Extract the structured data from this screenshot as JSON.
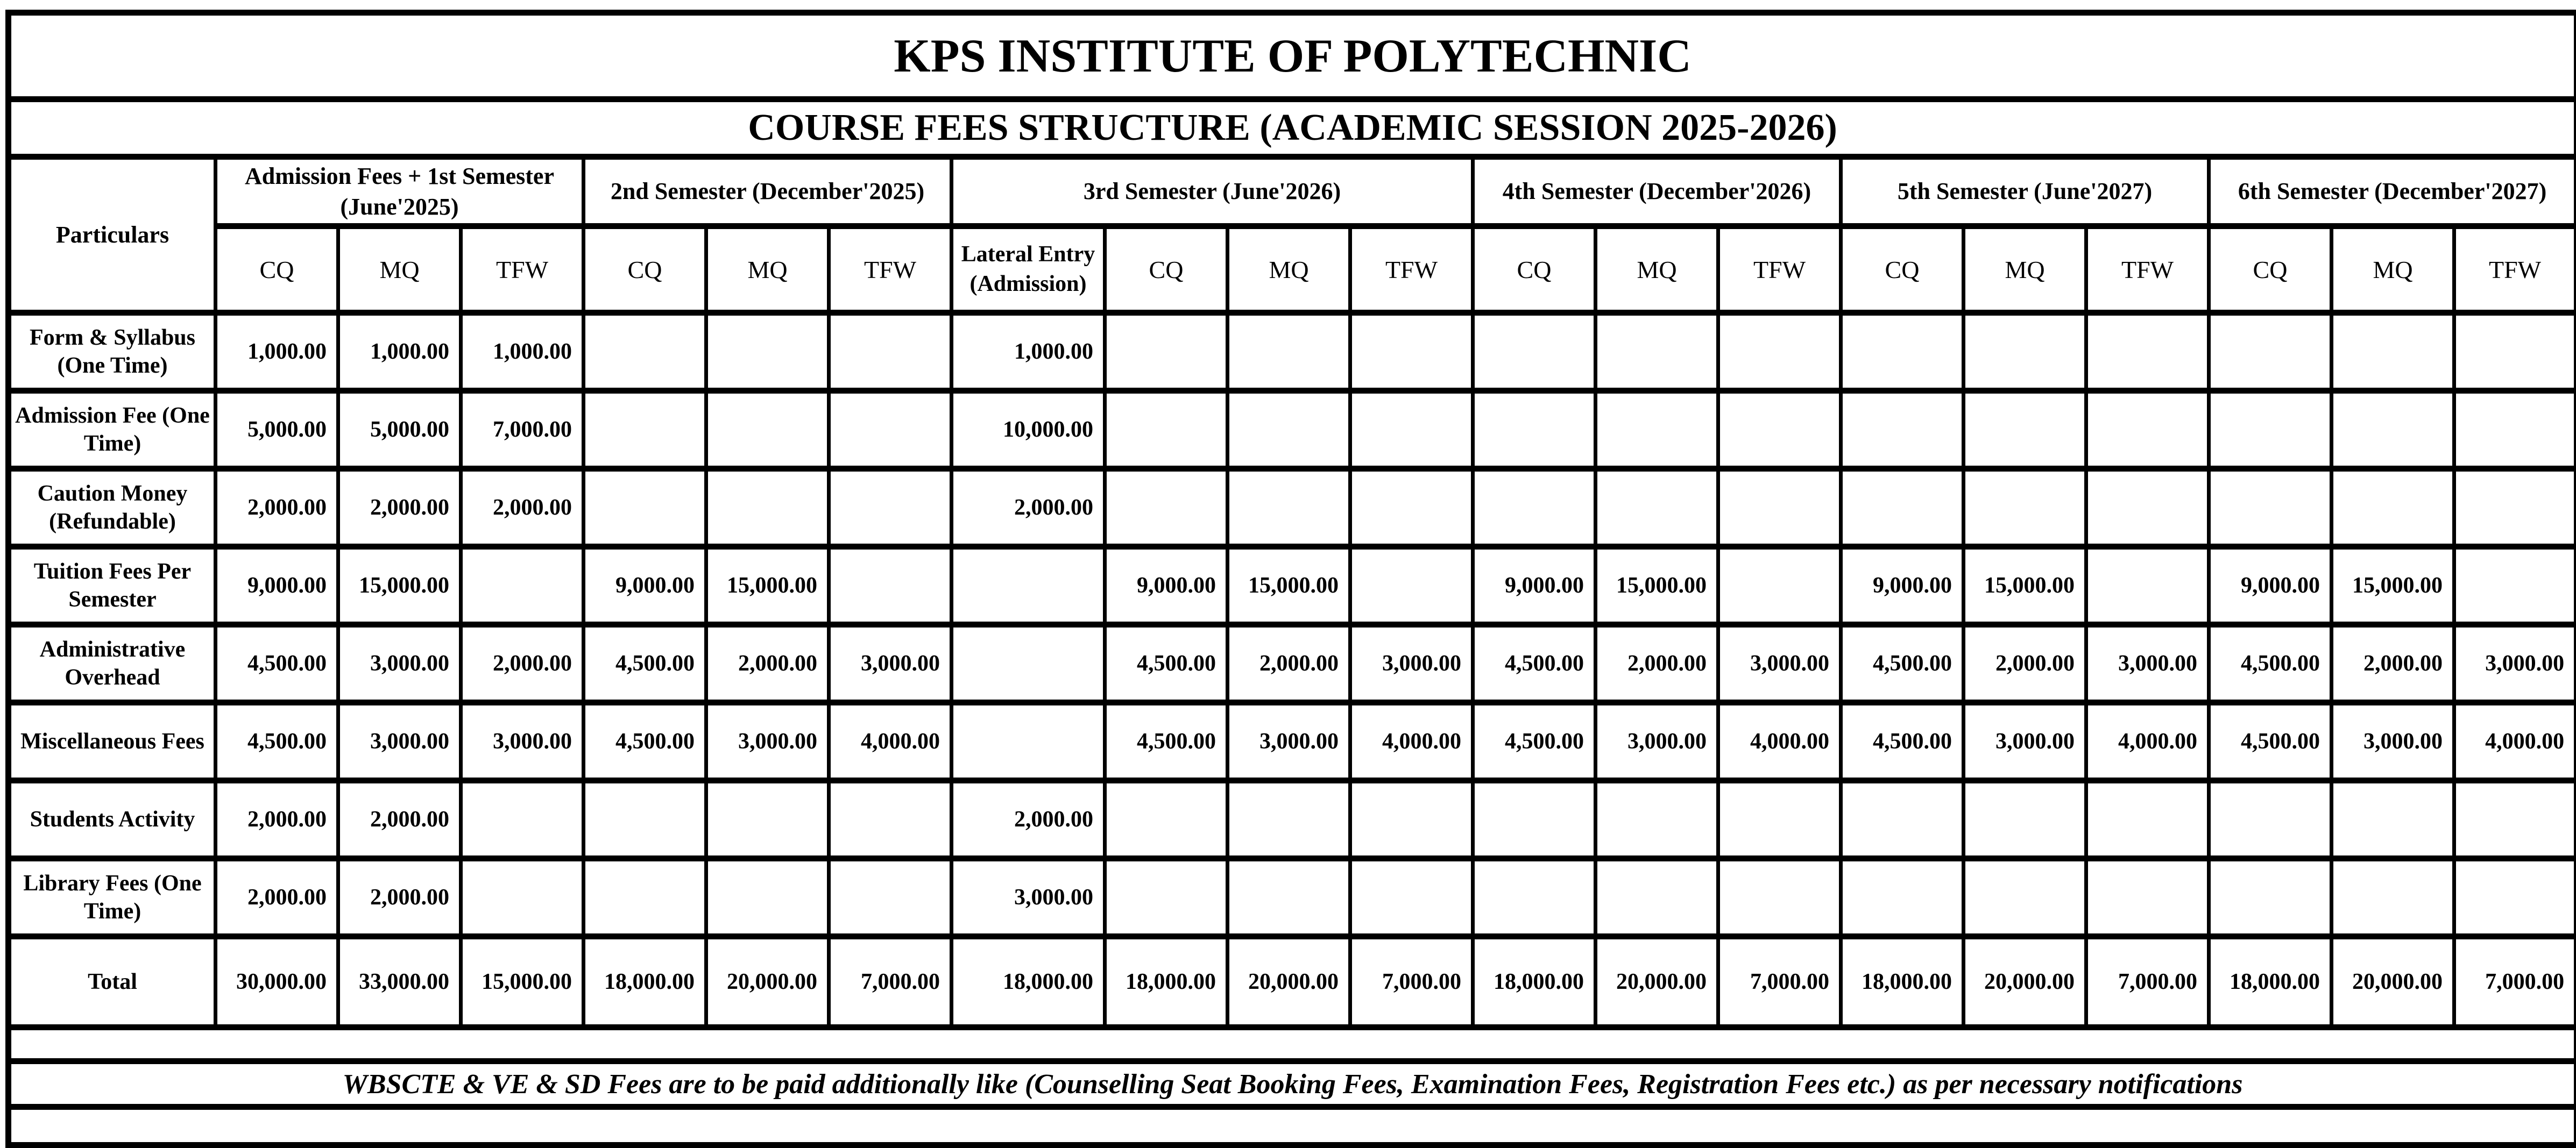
{
  "title": "KPS INSTITUTE OF POLYTECHNIC",
  "subtitle": "COURSE FEES STRUCTURE (ACADEMIC SESSION 2025-2026)",
  "colors": {
    "background": "#ffffff",
    "border": "#000000",
    "text": "#000000"
  },
  "table": {
    "particulars_header": "Particulars",
    "groups": [
      {
        "label": "Admission Fees + 1st Semester (June'2025)",
        "subcols": [
          "CQ",
          "MQ",
          "TFW"
        ]
      },
      {
        "label": "2nd Semester (December'2025)",
        "subcols": [
          "CQ",
          "MQ",
          "TFW"
        ]
      },
      {
        "label": "3rd Semester (June'2026)",
        "subcols": [
          "Lateral Entry (Admission)",
          "CQ",
          "MQ",
          "TFW"
        ]
      },
      {
        "label": "4th Semester (December'2026)",
        "subcols": [
          "CQ",
          "MQ",
          "TFW"
        ]
      },
      {
        "label": "5th Semester (June'2027)",
        "subcols": [
          "CQ",
          "MQ",
          "TFW"
        ]
      },
      {
        "label": "6th Semester (December'2027)",
        "subcols": [
          "CQ",
          "MQ",
          "TFW"
        ]
      }
    ],
    "rows": [
      {
        "label": "Form & Syllabus (One Time)",
        "values": [
          "1,000.00",
          "1,000.00",
          "1,000.00",
          "",
          "",
          "",
          "1,000.00",
          "",
          "",
          "",
          "",
          "",
          "",
          "",
          "",
          "",
          "",
          "",
          ""
        ]
      },
      {
        "label": "Admission Fee (One Time)",
        "values": [
          "5,000.00",
          "5,000.00",
          "7,000.00",
          "",
          "",
          "",
          "10,000.00",
          "",
          "",
          "",
          "",
          "",
          "",
          "",
          "",
          "",
          "",
          "",
          ""
        ]
      },
      {
        "label": "Caution Money (Refundable)",
        "values": [
          "2,000.00",
          "2,000.00",
          "2,000.00",
          "",
          "",
          "",
          "2,000.00",
          "",
          "",
          "",
          "",
          "",
          "",
          "",
          "",
          "",
          "",
          "",
          ""
        ]
      },
      {
        "label": "Tuition Fees Per Semester",
        "values": [
          "9,000.00",
          "15,000.00",
          "",
          "9,000.00",
          "15,000.00",
          "",
          "",
          "9,000.00",
          "15,000.00",
          "",
          "9,000.00",
          "15,000.00",
          "",
          "9,000.00",
          "15,000.00",
          "",
          "9,000.00",
          "15,000.00",
          ""
        ]
      },
      {
        "label": "Administrative Overhead",
        "values": [
          "4,500.00",
          "3,000.00",
          "2,000.00",
          "4,500.00",
          "2,000.00",
          "3,000.00",
          "",
          "4,500.00",
          "2,000.00",
          "3,000.00",
          "4,500.00",
          "2,000.00",
          "3,000.00",
          "4,500.00",
          "2,000.00",
          "3,000.00",
          "4,500.00",
          "2,000.00",
          "3,000.00"
        ]
      },
      {
        "label": "Miscellaneous Fees",
        "values": [
          "4,500.00",
          "3,000.00",
          "3,000.00",
          "4,500.00",
          "3,000.00",
          "4,000.00",
          "",
          "4,500.00",
          "3,000.00",
          "4,000.00",
          "4,500.00",
          "3,000.00",
          "4,000.00",
          "4,500.00",
          "3,000.00",
          "4,000.00",
          "4,500.00",
          "3,000.00",
          "4,000.00"
        ]
      },
      {
        "label": "Students Activity",
        "values": [
          "2,000.00",
          "2,000.00",
          "",
          "",
          "",
          "",
          "2,000.00",
          "",
          "",
          "",
          "",
          "",
          "",
          "",
          "",
          "",
          "",
          "",
          ""
        ]
      },
      {
        "label": "Library Fees (One Time)",
        "values": [
          "2,000.00",
          "2,000.00",
          "",
          "",
          "",
          "",
          "3,000.00",
          "",
          "",
          "",
          "",
          "",
          "",
          "",
          "",
          "",
          "",
          "",
          ""
        ]
      },
      {
        "label": "Total",
        "is_total": true,
        "values": [
          "30,000.00",
          "33,000.00",
          "15,000.00",
          "18,000.00",
          "20,000.00",
          "7,000.00",
          "18,000.00",
          "18,000.00",
          "20,000.00",
          "7,000.00",
          "18,000.00",
          "20,000.00",
          "7,000.00",
          "18,000.00",
          "20,000.00",
          "7,000.00",
          "18,000.00",
          "20,000.00",
          "7,000.00"
        ]
      }
    ]
  },
  "note": "WBSCTE & VE & SD Fees are to be paid additionally like (Counselling Seat Booking Fees, Examination Fees, Registration Fees etc.) as per necessary notifications"
}
